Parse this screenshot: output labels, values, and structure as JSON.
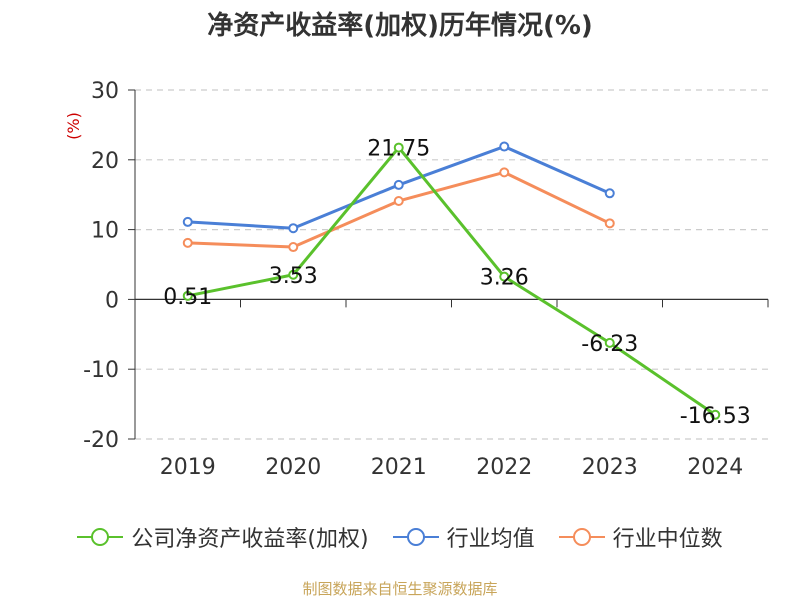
{
  "title": "净资产收益率(加权)历年情况(%)",
  "source": "制图数据来自恒生聚源数据库",
  "chart_data": {
    "type": "line",
    "title": "净资产收益率(加权)历年情况(%)",
    "ylabel": "(%)",
    "xlabel": "",
    "categories": [
      "2019",
      "2020",
      "2021",
      "2022",
      "2023",
      "2024"
    ],
    "ylim": [
      -20,
      30
    ],
    "yticks": [
      -20,
      -10,
      0,
      10,
      20,
      30
    ],
    "grid": true,
    "legend_position": "bottom",
    "series": [
      {
        "name": "公司净资产收益率(加权)",
        "color": "#5ac12c",
        "values": [
          0.51,
          3.53,
          21.75,
          3.26,
          -6.23,
          -16.53
        ],
        "labels": [
          "0.51",
          "3.53",
          "21.75",
          "3.26",
          "-6.23",
          "-16.53"
        ]
      },
      {
        "name": "行业均值",
        "color": "#4a7fd6",
        "values": [
          11.1,
          10.2,
          16.4,
          21.9,
          15.2,
          null
        ]
      },
      {
        "name": "行业中位数",
        "color": "#f58d5b",
        "values": [
          8.1,
          7.5,
          14.1,
          18.2,
          10.9,
          null
        ]
      }
    ]
  }
}
